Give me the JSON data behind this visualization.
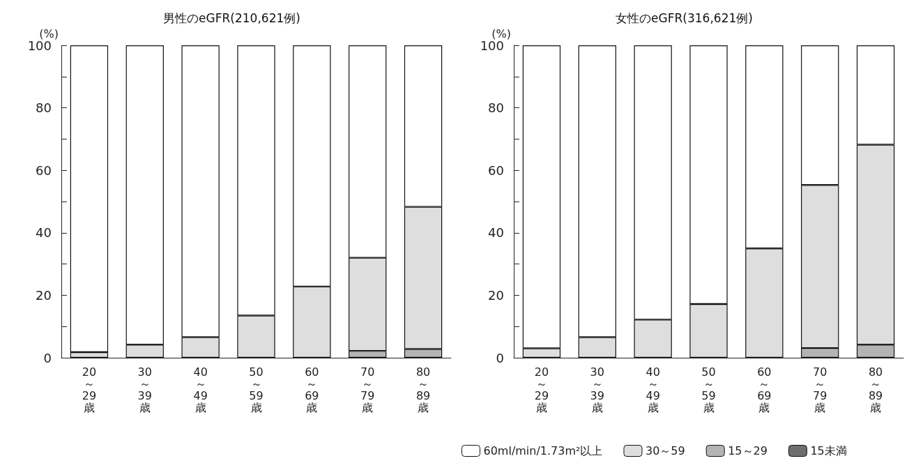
{
  "chart_data": [
    {
      "type": "bar",
      "title": "男性のeGFR(210,621例)",
      "ylabel": "(%)",
      "stacked": true,
      "grid": false,
      "legend": false,
      "categories": [
        "20～29歳",
        "30～39歳",
        "40～49歳",
        "50～59歳",
        "60～69歳",
        "70～79歳",
        "80～89歳"
      ],
      "ylim": [
        0,
        100
      ],
      "yticks": [
        0,
        {
          "value": 10,
          "label": null
        },
        20,
        {
          "value": 30,
          "label": null
        },
        40,
        {
          "value": 50,
          "label": null
        },
        60,
        {
          "value": 70,
          "label": null
        },
        80,
        {
          "value": 90,
          "label": null
        },
        100
      ],
      "series": [
        {
          "color": "#6e6e6e",
          "values": [
            null,
            null,
            null,
            null,
            null,
            null,
            null
          ]
        },
        {
          "color": "#b4b4b4",
          "values": [
            null,
            null,
            null,
            null,
            null,
            2.2,
            2.8
          ]
        },
        {
          "color": "#dedede",
          "values": [
            1.8,
            4.2,
            6.6,
            13.5,
            22.8,
            29.8,
            45.5
          ]
        },
        {
          "color": "#ffffff",
          "values": [
            98.2,
            95.8,
            93.4,
            86.5,
            77.2,
            68,
            51.7
          ]
        }
      ]
    },
    {
      "type": "bar",
      "title": "女性のeGFR(316,621例)",
      "ylabel": "(%)",
      "stacked": true,
      "grid": false,
      "legend": "bottom",
      "categories": [
        "20～29歳",
        "30～39歳",
        "40～49歳",
        "50～59歳",
        "60～69歳",
        "70～79歳",
        "80～89歳"
      ],
      "ylim": [
        0,
        100
      ],
      "yticks": [
        0,
        {
          "value": 10,
          "label": null
        },
        20,
        {
          "value": 30,
          "label": null
        },
        40,
        {
          "value": 50,
          "label": null
        },
        60,
        {
          "value": 70,
          "label": null
        },
        80,
        {
          "value": 90,
          "label": null
        },
        100
      ],
      "series": [
        {
          "name": "15未満",
          "color": "#6e6e6e",
          "values": [
            null,
            null,
            null,
            null,
            null,
            null,
            null
          ]
        },
        {
          "name": "15～29",
          "color": "#b4b4b4",
          "values": [
            null,
            null,
            null,
            null,
            null,
            3.1,
            4.2
          ]
        },
        {
          "name": "30～59",
          "color": "#dedede",
          "values": [
            3,
            6.6,
            12.2,
            17.2,
            35,
            52.2,
            64
          ]
        },
        {
          "name": "60ml/min/1.73m²以上",
          "color": "#ffffff",
          "values": [
            97,
            93.4,
            87.8,
            82.8,
            65,
            44.7,
            31.8
          ]
        }
      ]
    }
  ]
}
